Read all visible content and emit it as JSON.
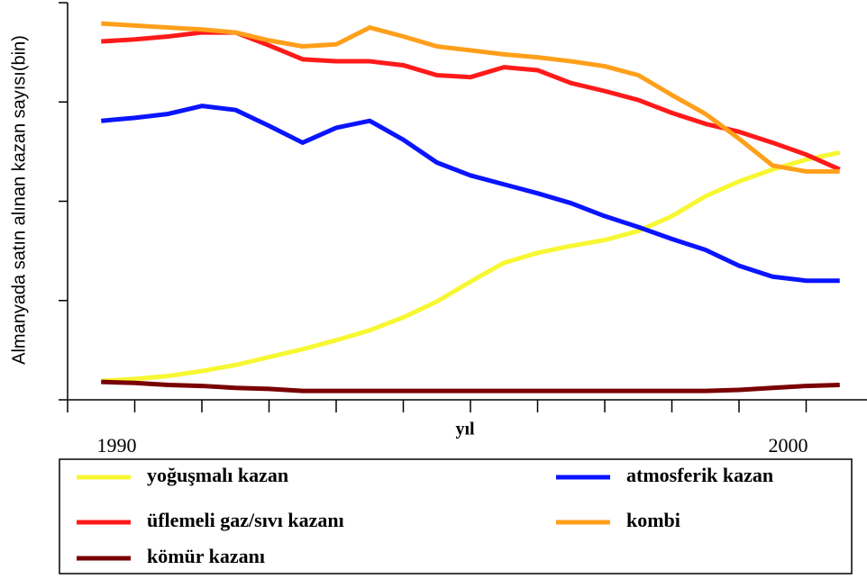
{
  "chart_data": {
    "type": "line",
    "ylabel": "Almanyada satın alınan kazan sayısı(bin)",
    "xlabel": "yıl",
    "x": [
      1989.5,
      1990,
      1990.5,
      1991,
      1991.5,
      1992,
      1992.5,
      1993,
      1993.5,
      1994,
      1994.5,
      1995,
      1995.5,
      1996,
      1996.5,
      1997,
      1997.5,
      1998,
      1998.5,
      1999,
      1999.5,
      2000,
      2000.5
    ],
    "xlim": [
      1989,
      2001
    ],
    "xticks": [
      1989,
      1990,
      1991,
      1992,
      1993,
      1994,
      1995,
      1996,
      1997,
      1998,
      1999,
      2000
    ],
    "xtick_labels": [
      1990,
      2000
    ],
    "ylim": [
      0,
      4
    ],
    "yticks": [
      0,
      1,
      2,
      3,
      4
    ],
    "series": [
      {
        "name": "yoğuşmalı kazan",
        "color": "#f7f733",
        "values": [
          0.19,
          0.21,
          0.24,
          0.29,
          0.35,
          0.43,
          0.51,
          0.6,
          0.7,
          0.83,
          0.99,
          1.19,
          1.38,
          1.48,
          1.55,
          1.61,
          1.7,
          1.85,
          2.05,
          2.2,
          2.32,
          2.42,
          2.49
        ]
      },
      {
        "name": "atmosferik kazan",
        "color": "#0a14ff",
        "values": [
          2.81,
          2.84,
          2.88,
          2.96,
          2.92,
          2.76,
          2.59,
          2.74,
          2.81,
          2.62,
          2.39,
          2.26,
          2.17,
          2.08,
          1.98,
          1.85,
          1.74,
          1.62,
          1.51,
          1.35,
          1.24,
          1.2,
          1.2
        ]
      },
      {
        "name": "üflemeli gaz/sıvı kazanı",
        "color": "#ff1a1a",
        "values": [
          3.61,
          3.63,
          3.66,
          3.7,
          3.7,
          3.57,
          3.43,
          3.41,
          3.41,
          3.37,
          3.27,
          3.25,
          3.35,
          3.32,
          3.19,
          3.11,
          3.02,
          2.89,
          2.78,
          2.7,
          2.59,
          2.47,
          2.32
        ]
      },
      {
        "name": "kombi",
        "color": "#ff9f1a",
        "values": [
          3.79,
          3.77,
          3.75,
          3.73,
          3.7,
          3.62,
          3.56,
          3.58,
          3.75,
          3.66,
          3.56,
          3.52,
          3.48,
          3.45,
          3.41,
          3.36,
          3.27,
          3.07,
          2.88,
          2.63,
          2.36,
          2.3,
          2.3
        ]
      },
      {
        "name": "kömür kazanı",
        "color": "#7a0000",
        "values": [
          0.18,
          0.17,
          0.15,
          0.14,
          0.12,
          0.11,
          0.09,
          0.09,
          0.09,
          0.09,
          0.09,
          0.09,
          0.09,
          0.09,
          0.09,
          0.09,
          0.09,
          0.09,
          0.09,
          0.1,
          0.12,
          0.14,
          0.15
        ]
      }
    ]
  }
}
